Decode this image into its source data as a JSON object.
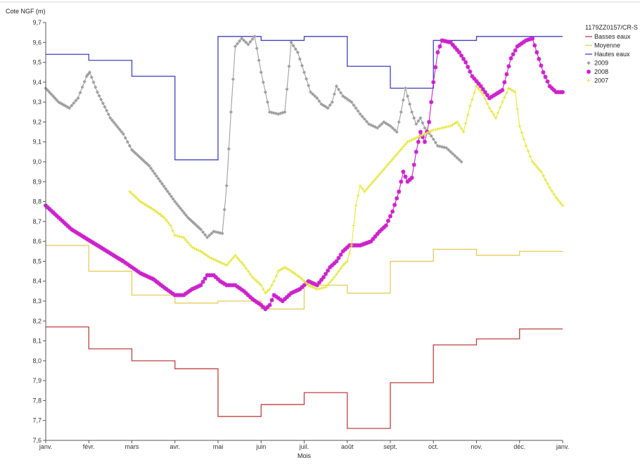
{
  "chart_data": {
    "type": "line",
    "title": "",
    "xlabel": "Mois",
    "ylabel": "Cote NGF (m)",
    "legend_title": "1179ZZ0157/CR-S",
    "legend_position": "right",
    "grid": false,
    "x_ticks": [
      "janv.",
      "févr.",
      "mars",
      "avr.",
      "mai",
      "juin",
      "juil.",
      "août",
      "sept.",
      "oct.",
      "nov.",
      "déc.",
      "janv."
    ],
    "y_ticks": [
      "7,6",
      "7,7",
      "7,8",
      "7,9",
      "8,0",
      "8,1",
      "8,2",
      "8,3",
      "8,4",
      "8,5",
      "8,6",
      "8,7",
      "8,8",
      "8,9",
      "9,0",
      "9,1",
      "9,2",
      "9,3",
      "9,4",
      "9,5",
      "9,6",
      "9,7"
    ],
    "xlim": [
      0,
      12
    ],
    "ylim": [
      7.6,
      9.7
    ],
    "series": [
      {
        "name": "Basses eaux",
        "color": "#c04040",
        "style": "step",
        "marker": "none",
        "monthly": [
          8.17,
          8.06,
          8.0,
          7.96,
          7.72,
          7.78,
          7.84,
          7.66,
          7.89,
          8.08,
          8.11,
          8.16
        ]
      },
      {
        "name": "Moyenne",
        "color": "#e6cc5a",
        "style": "step",
        "marker": "none",
        "monthly": [
          8.58,
          8.45,
          8.33,
          8.29,
          8.3,
          8.26,
          8.38,
          8.34,
          8.5,
          8.56,
          8.53,
          8.55
        ]
      },
      {
        "name": "Hautes eaux",
        "color": "#4040c0",
        "style": "step",
        "marker": "none",
        "monthly": [
          9.54,
          9.51,
          9.43,
          9.01,
          9.63,
          9.61,
          9.63,
          9.48,
          9.37,
          9.61,
          9.63,
          9.63
        ]
      },
      {
        "name": "2009",
        "color": "#a0a0a0",
        "style": "line",
        "marker": "diamond",
        "points": [
          [
            0.0,
            9.37
          ],
          [
            0.3,
            9.3
          ],
          [
            0.55,
            9.27
          ],
          [
            0.75,
            9.32
          ],
          [
            0.95,
            9.43
          ],
          [
            1.02,
            9.45
          ],
          [
            1.2,
            9.35
          ],
          [
            1.5,
            9.22
          ],
          [
            1.8,
            9.14
          ],
          [
            2.0,
            9.06
          ],
          [
            2.4,
            8.98
          ],
          [
            2.7,
            8.89
          ],
          [
            3.0,
            8.8
          ],
          [
            3.3,
            8.72
          ],
          [
            3.6,
            8.66
          ],
          [
            3.75,
            8.62
          ],
          [
            3.9,
            8.65
          ],
          [
            4.1,
            8.64
          ],
          [
            4.2,
            8.88
          ],
          [
            4.3,
            9.25
          ],
          [
            4.4,
            9.58
          ],
          [
            4.55,
            9.62
          ],
          [
            4.7,
            9.59
          ],
          [
            4.85,
            9.63
          ],
          [
            5.0,
            9.45
          ],
          [
            5.2,
            9.25
          ],
          [
            5.4,
            9.24
          ],
          [
            5.55,
            9.25
          ],
          [
            5.65,
            9.48
          ],
          [
            5.7,
            9.6
          ],
          [
            5.85,
            9.55
          ],
          [
            6.0,
            9.45
          ],
          [
            6.15,
            9.35
          ],
          [
            6.3,
            9.32
          ],
          [
            6.4,
            9.29
          ],
          [
            6.55,
            9.27
          ],
          [
            6.65,
            9.3
          ],
          [
            6.75,
            9.38
          ],
          [
            6.9,
            9.33
          ],
          [
            7.1,
            9.3
          ],
          [
            7.3,
            9.24
          ],
          [
            7.5,
            9.19
          ],
          [
            7.7,
            9.17
          ],
          [
            7.85,
            9.2
          ],
          [
            8.0,
            9.18
          ],
          [
            8.15,
            9.15
          ],
          [
            8.25,
            9.25
          ],
          [
            8.35,
            9.37
          ],
          [
            8.5,
            9.25
          ],
          [
            8.6,
            9.19
          ],
          [
            8.7,
            9.22
          ],
          [
            8.8,
            9.17
          ],
          [
            8.95,
            9.13
          ],
          [
            9.1,
            9.08
          ],
          [
            9.3,
            9.07
          ],
          [
            9.5,
            9.03
          ],
          [
            9.65,
            9.0
          ]
        ]
      },
      {
        "name": "2008",
        "color": "#cc22cc",
        "style": "line",
        "marker": "star",
        "points": [
          [
            0.0,
            8.78
          ],
          [
            0.3,
            8.72
          ],
          [
            0.6,
            8.66
          ],
          [
            0.9,
            8.62
          ],
          [
            1.2,
            8.58
          ],
          [
            1.5,
            8.54
          ],
          [
            1.8,
            8.5
          ],
          [
            2.0,
            8.47
          ],
          [
            2.2,
            8.44
          ],
          [
            2.5,
            8.41
          ],
          [
            2.8,
            8.36
          ],
          [
            3.0,
            8.33
          ],
          [
            3.2,
            8.33
          ],
          [
            3.4,
            8.36
          ],
          [
            3.6,
            8.38
          ],
          [
            3.75,
            8.43
          ],
          [
            3.9,
            8.43
          ],
          [
            4.05,
            8.4
          ],
          [
            4.2,
            8.38
          ],
          [
            4.4,
            8.38
          ],
          [
            4.6,
            8.35
          ],
          [
            4.8,
            8.31
          ],
          [
            5.0,
            8.28
          ],
          [
            5.1,
            8.26
          ],
          [
            5.2,
            8.28
          ],
          [
            5.3,
            8.33
          ],
          [
            5.5,
            8.3
          ],
          [
            5.7,
            8.34
          ],
          [
            5.9,
            8.36
          ],
          [
            6.1,
            8.4
          ],
          [
            6.3,
            8.38
          ],
          [
            6.45,
            8.42
          ],
          [
            6.6,
            8.47
          ],
          [
            6.75,
            8.5
          ],
          [
            6.9,
            8.55
          ],
          [
            7.05,
            8.58
          ],
          [
            7.3,
            8.58
          ],
          [
            7.55,
            8.6
          ],
          [
            7.75,
            8.65
          ],
          [
            7.9,
            8.68
          ],
          [
            8.05,
            8.75
          ],
          [
            8.2,
            8.85
          ],
          [
            8.3,
            8.95
          ],
          [
            8.4,
            8.9
          ],
          [
            8.5,
            8.92
          ],
          [
            8.6,
            9.05
          ],
          [
            8.7,
            9.15
          ],
          [
            8.8,
            9.1
          ],
          [
            8.9,
            9.2
          ],
          [
            9.0,
            9.4
          ],
          [
            9.1,
            9.55
          ],
          [
            9.2,
            9.61
          ],
          [
            9.4,
            9.6
          ],
          [
            9.6,
            9.55
          ],
          [
            9.75,
            9.5
          ],
          [
            9.9,
            9.43
          ],
          [
            10.1,
            9.38
          ],
          [
            10.3,
            9.32
          ],
          [
            10.45,
            9.34
          ],
          [
            10.6,
            9.36
          ],
          [
            10.8,
            9.52
          ],
          [
            10.95,
            9.58
          ],
          [
            11.15,
            9.61
          ],
          [
            11.3,
            9.62
          ],
          [
            11.4,
            9.55
          ],
          [
            11.55,
            9.45
          ],
          [
            11.7,
            9.38
          ],
          [
            11.85,
            9.35
          ],
          [
            12.0,
            9.35
          ]
        ]
      },
      {
        "name": "2007",
        "color": "#e6e640",
        "style": "line",
        "marker": "plus",
        "points": [
          [
            1.95,
            8.85
          ],
          [
            2.2,
            8.8
          ],
          [
            2.5,
            8.76
          ],
          [
            2.75,
            8.72
          ],
          [
            2.9,
            8.68
          ],
          [
            3.0,
            8.63
          ],
          [
            3.2,
            8.62
          ],
          [
            3.4,
            8.57
          ],
          [
            3.6,
            8.55
          ],
          [
            3.8,
            8.52
          ],
          [
            4.0,
            8.5
          ],
          [
            4.2,
            8.48
          ],
          [
            4.4,
            8.53
          ],
          [
            4.6,
            8.48
          ],
          [
            4.8,
            8.42
          ],
          [
            5.0,
            8.38
          ],
          [
            5.1,
            8.34
          ],
          [
            5.2,
            8.36
          ],
          [
            5.3,
            8.4
          ],
          [
            5.4,
            8.45
          ],
          [
            5.55,
            8.47
          ],
          [
            5.7,
            8.45
          ],
          [
            5.9,
            8.42
          ],
          [
            6.1,
            8.38
          ],
          [
            6.3,
            8.36
          ],
          [
            6.5,
            8.37
          ],
          [
            6.7,
            8.42
          ],
          [
            6.9,
            8.48
          ],
          [
            7.0,
            8.5
          ],
          [
            7.1,
            8.58
          ],
          [
            7.2,
            8.78
          ],
          [
            7.3,
            8.88
          ],
          [
            7.4,
            8.85
          ],
          [
            7.6,
            8.9
          ],
          [
            7.8,
            8.95
          ],
          [
            8.0,
            9.0
          ],
          [
            8.2,
            9.05
          ],
          [
            8.4,
            9.1
          ],
          [
            8.6,
            9.12
          ],
          [
            8.8,
            9.14
          ],
          [
            9.0,
            9.16
          ],
          [
            9.2,
            9.17
          ],
          [
            9.4,
            9.18
          ],
          [
            9.55,
            9.2
          ],
          [
            9.7,
            9.15
          ],
          [
            9.85,
            9.28
          ],
          [
            10.0,
            9.38
          ],
          [
            10.15,
            9.34
          ],
          [
            10.3,
            9.27
          ],
          [
            10.45,
            9.22
          ],
          [
            10.6,
            9.3
          ],
          [
            10.75,
            9.37
          ],
          [
            10.9,
            9.35
          ],
          [
            11.0,
            9.18
          ],
          [
            11.15,
            9.08
          ],
          [
            11.3,
            9.0
          ],
          [
            11.5,
            8.95
          ],
          [
            11.7,
            8.87
          ],
          [
            11.85,
            8.82
          ],
          [
            12.0,
            8.78
          ]
        ]
      }
    ]
  }
}
